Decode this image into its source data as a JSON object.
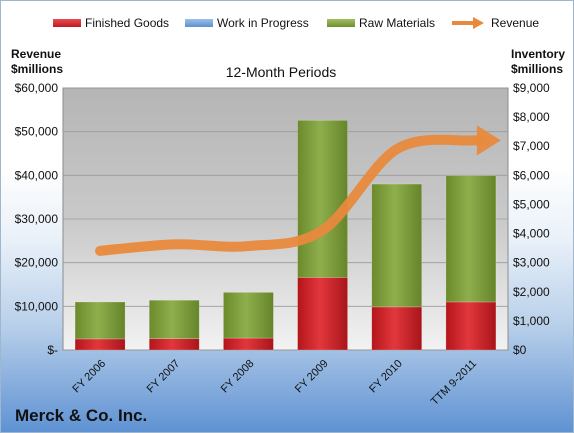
{
  "chart_data": {
    "type": "bar",
    "title": "12-Month Periods",
    "company": "Merck & Co. Inc.",
    "categories": [
      "FY 2006",
      "FY 2007",
      "FY 2008",
      "FY 2009",
      "FY 2010",
      "TTM 9-2011"
    ],
    "left_axis": {
      "label_line1": "Revenue",
      "label_line2": "$millions",
      "ylim": [
        0,
        60000
      ],
      "ticks": [
        0,
        10000,
        20000,
        30000,
        40000,
        50000,
        60000
      ],
      "tick_labels": [
        "$-",
        "$10,000",
        "$20,000",
        "$30,000",
        "$40,000",
        "$50,000",
        "$60,000"
      ]
    },
    "right_axis": {
      "label_line1": "Inventory",
      "label_line2": "$millions",
      "ylim": [
        0,
        9000
      ],
      "ticks": [
        0,
        1000,
        2000,
        3000,
        4000,
        5000,
        6000,
        7000,
        8000,
        9000
      ],
      "tick_labels": [
        "$0",
        "$1,000",
        "$2,000",
        "$3,000",
        "$4,000",
        "$5,000",
        "$6,000",
        "$7,000",
        "$8,000",
        "$9,000"
      ]
    },
    "series": [
      {
        "name": "Finished Goods",
        "axis": "right",
        "type": "stacked-bar",
        "color": "#d0242a",
        "values": [
          380,
          390,
          410,
          2490,
          1480,
          1650
        ]
      },
      {
        "name": "Work in Progress",
        "axis": "right",
        "type": "stacked-bar",
        "color": "#6f9fd8",
        "values": [
          0,
          0,
          0,
          0,
          0,
          0
        ]
      },
      {
        "name": "Raw Materials",
        "axis": "right",
        "type": "stacked-bar",
        "color": "#7d9d3c",
        "values": [
          1270,
          1320,
          1570,
          5400,
          4220,
          4340
        ]
      },
      {
        "name": "Revenue",
        "axis": "left",
        "type": "line",
        "color": "#e8893c",
        "values": [
          22700,
          24200,
          23800,
          27400,
          46000,
          48000
        ]
      }
    ],
    "grid": true,
    "legend_position": "top"
  }
}
